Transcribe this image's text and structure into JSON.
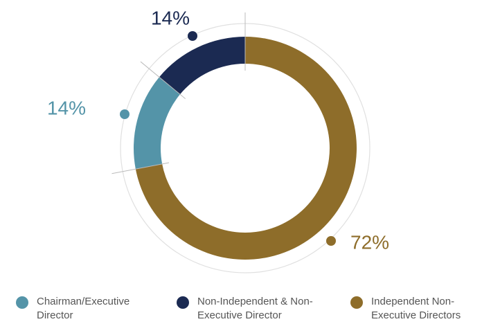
{
  "chart_data": {
    "type": "donut",
    "categories": [
      "Chairman/Executive Director",
      "Non-Independent & Non-Executive Director",
      "Independent Non-Executive Directors"
    ],
    "values": [
      14,
      14,
      72
    ],
    "value_labels": [
      "14%",
      "14%",
      "72%"
    ],
    "colors": [
      "#5494a8",
      "#1b2a52",
      "#8e6d2a"
    ],
    "legend": "bottom"
  }
}
